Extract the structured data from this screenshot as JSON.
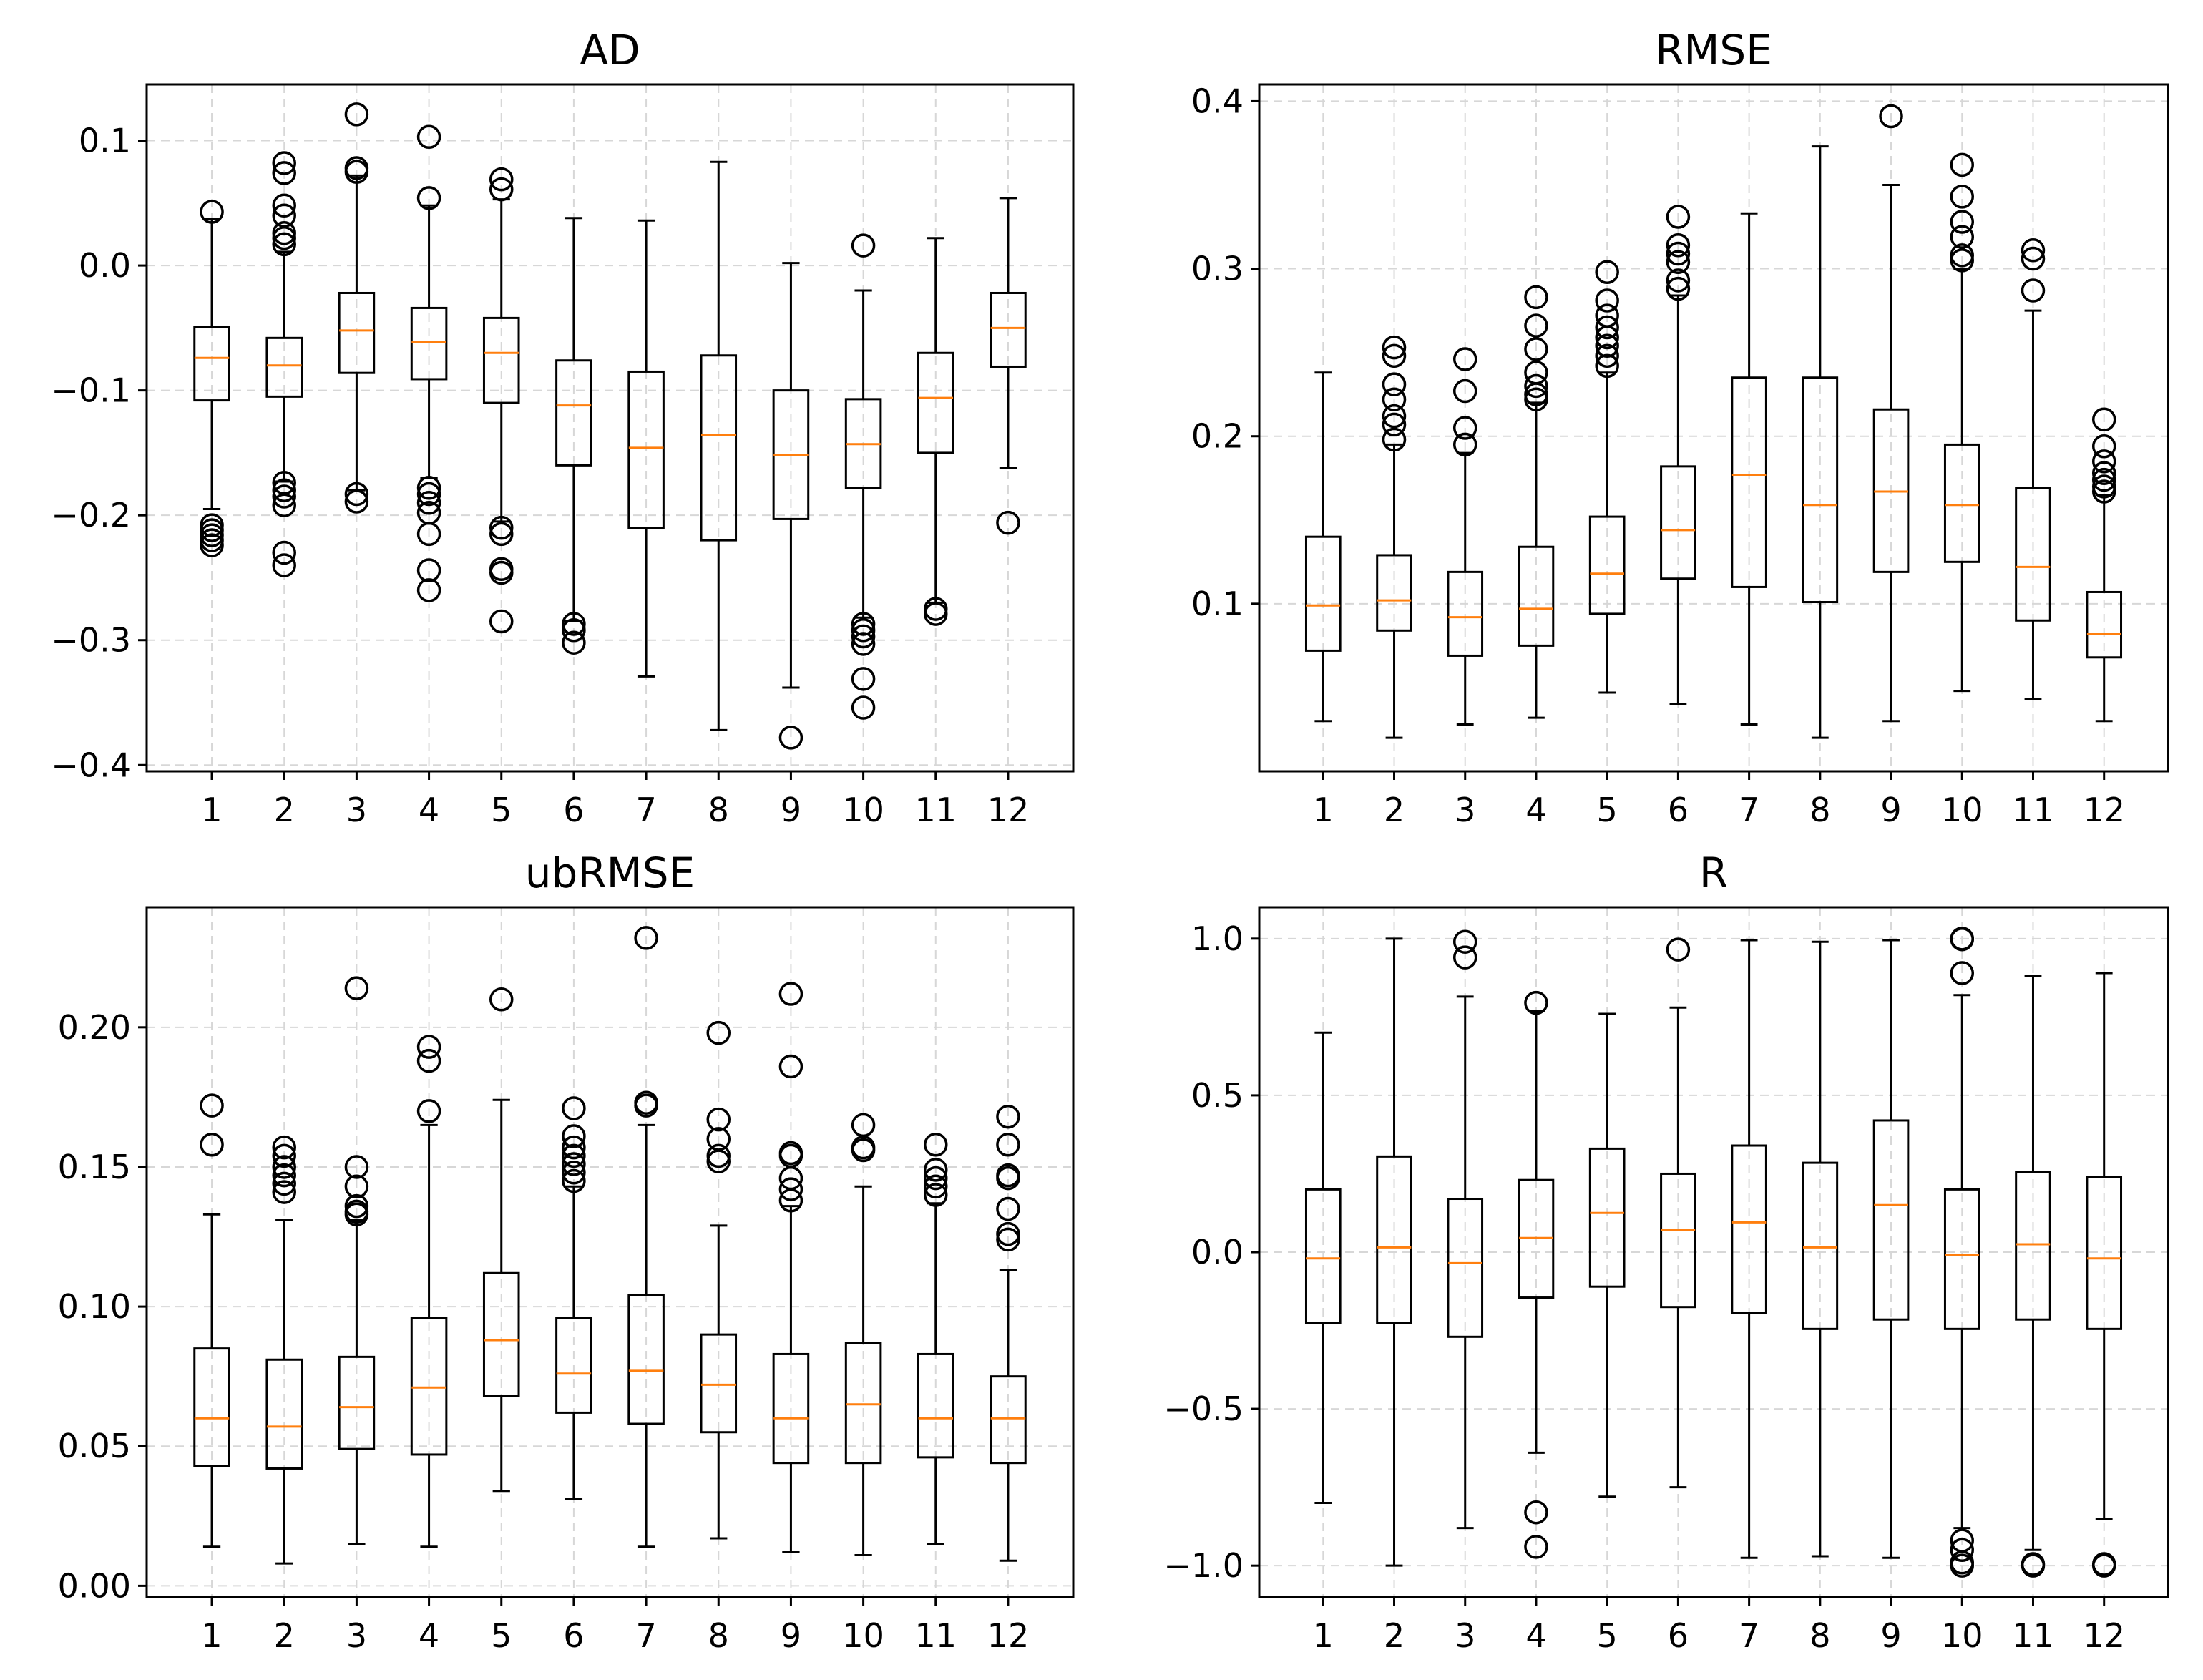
{
  "chart_data": [
    {
      "type": "boxplot",
      "title": "AD",
      "categories": [
        "1",
        "2",
        "3",
        "4",
        "5",
        "6",
        "7",
        "8",
        "9",
        "10",
        "11",
        "12"
      ],
      "ylim": [
        -0.405,
        0.145
      ],
      "yticks": [
        -0.4,
        -0.3,
        -0.2,
        -0.1,
        0.0,
        0.1
      ],
      "ytick_labels": [
        "−0.4",
        "−0.3",
        "−0.2",
        "−0.1",
        "0.0",
        "0.1"
      ],
      "boxes": [
        {
          "q1": -0.108,
          "median": -0.074,
          "q3": -0.049,
          "whislo": -0.195,
          "whishi": 0.037,
          "fliers": [
            0.043,
            -0.208,
            -0.212,
            -0.216,
            -0.22,
            -0.224
          ]
        },
        {
          "q1": -0.105,
          "median": -0.08,
          "q3": -0.058,
          "whislo": -0.173,
          "whishi": 0.011,
          "fliers": [
            0.082,
            0.074,
            0.048,
            0.04,
            0.026,
            0.022,
            0.017,
            -0.174,
            -0.18,
            -0.185,
            -0.192,
            -0.23,
            -0.24
          ]
        },
        {
          "q1": -0.086,
          "median": -0.052,
          "q3": -0.022,
          "whislo": -0.18,
          "whishi": 0.072,
          "fliers": [
            0.121,
            0.078,
            0.075,
            -0.183,
            -0.189
          ]
        },
        {
          "q1": -0.091,
          "median": -0.061,
          "q3": -0.034,
          "whislo": -0.17,
          "whishi": 0.048,
          "fliers": [
            0.103,
            0.054,
            -0.178,
            -0.183,
            -0.19,
            -0.198,
            -0.215,
            -0.244,
            -0.26
          ]
        },
        {
          "q1": -0.11,
          "median": -0.07,
          "q3": -0.042,
          "whislo": -0.205,
          "whishi": 0.053,
          "fliers": [
            0.069,
            0.061,
            -0.21,
            -0.215,
            -0.243,
            -0.246,
            -0.285
          ]
        },
        {
          "q1": -0.16,
          "median": -0.112,
          "q3": -0.076,
          "whislo": -0.285,
          "whishi": 0.038,
          "fliers": [
            -0.287,
            -0.292,
            -0.302
          ]
        },
        {
          "q1": -0.21,
          "median": -0.146,
          "q3": -0.085,
          "whislo": -0.329,
          "whishi": 0.036,
          "fliers": []
        },
        {
          "q1": -0.22,
          "median": -0.136,
          "q3": -0.072,
          "whislo": -0.372,
          "whishi": 0.083,
          "fliers": []
        },
        {
          "q1": -0.203,
          "median": -0.152,
          "q3": -0.1,
          "whislo": -0.338,
          "whishi": 0.002,
          "fliers": [
            -0.378
          ]
        },
        {
          "q1": -0.178,
          "median": -0.143,
          "q3": -0.107,
          "whislo": -0.282,
          "whishi": -0.02,
          "fliers": [
            0.016,
            -0.287,
            -0.292,
            -0.297,
            -0.303,
            -0.331,
            -0.354
          ]
        },
        {
          "q1": -0.15,
          "median": -0.106,
          "q3": -0.07,
          "whislo": -0.27,
          "whishi": 0.022,
          "fliers": [
            -0.275,
            -0.279
          ]
        },
        {
          "q1": -0.081,
          "median": -0.05,
          "q3": -0.022,
          "whislo": -0.162,
          "whishi": 0.054,
          "fliers": [
            -0.206
          ]
        }
      ]
    },
    {
      "type": "boxplot",
      "title": "RMSE",
      "categories": [
        "1",
        "2",
        "3",
        "4",
        "5",
        "6",
        "7",
        "8",
        "9",
        "10",
        "11",
        "12"
      ],
      "ylim": [
        0.0,
        0.41
      ],
      "yticks": [
        0.1,
        0.2,
        0.3,
        0.4
      ],
      "ytick_labels": [
        "0.1",
        "0.2",
        "0.3",
        "0.4"
      ],
      "boxes": [
        {
          "q1": 0.072,
          "median": 0.099,
          "q3": 0.14,
          "whislo": 0.03,
          "whishi": 0.238,
          "fliers": []
        },
        {
          "q1": 0.084,
          "median": 0.102,
          "q3": 0.129,
          "whislo": 0.02,
          "whishi": 0.195,
          "fliers": [
            0.253,
            0.248,
            0.231,
            0.222,
            0.212,
            0.207,
            0.198
          ]
        },
        {
          "q1": 0.069,
          "median": 0.092,
          "q3": 0.119,
          "whislo": 0.028,
          "whishi": 0.19,
          "fliers": [
            0.246,
            0.227,
            0.205,
            0.195
          ]
        },
        {
          "q1": 0.075,
          "median": 0.097,
          "q3": 0.134,
          "whislo": 0.032,
          "whishi": 0.22,
          "fliers": [
            0.283,
            0.266,
            0.252,
            0.238,
            0.23,
            0.225,
            0.222
          ]
        },
        {
          "q1": 0.094,
          "median": 0.118,
          "q3": 0.152,
          "whislo": 0.047,
          "whishi": 0.238,
          "fliers": [
            0.298,
            0.281,
            0.272,
            0.265,
            0.259,
            0.254,
            0.248,
            0.242
          ]
        },
        {
          "q1": 0.115,
          "median": 0.144,
          "q3": 0.182,
          "whislo": 0.04,
          "whishi": 0.284,
          "fliers": [
            0.331,
            0.314,
            0.309,
            0.304,
            0.293,
            0.288
          ]
        },
        {
          "q1": 0.11,
          "median": 0.177,
          "q3": 0.235,
          "whislo": 0.028,
          "whishi": 0.333,
          "fliers": []
        },
        {
          "q1": 0.101,
          "median": 0.159,
          "q3": 0.235,
          "whislo": 0.02,
          "whishi": 0.373,
          "fliers": []
        },
        {
          "q1": 0.119,
          "median": 0.167,
          "q3": 0.216,
          "whislo": 0.03,
          "whishi": 0.35,
          "fliers": [
            0.391
          ]
        },
        {
          "q1": 0.125,
          "median": 0.159,
          "q3": 0.195,
          "whislo": 0.048,
          "whishi": 0.3,
          "fliers": [
            0.362,
            0.343,
            0.328,
            0.319,
            0.308,
            0.305
          ]
        },
        {
          "q1": 0.09,
          "median": 0.122,
          "q3": 0.169,
          "whislo": 0.043,
          "whishi": 0.275,
          "fliers": [
            0.311,
            0.306,
            0.287
          ]
        },
        {
          "q1": 0.068,
          "median": 0.082,
          "q3": 0.107,
          "whislo": 0.03,
          "whishi": 0.165,
          "fliers": [
            0.21,
            0.194,
            0.185,
            0.178,
            0.174,
            0.17,
            0.167
          ]
        }
      ]
    },
    {
      "type": "boxplot",
      "title": "ubRMSE",
      "categories": [
        "1",
        "2",
        "3",
        "4",
        "5",
        "6",
        "7",
        "8",
        "9",
        "10",
        "11",
        "12"
      ],
      "ylim": [
        -0.004,
        0.243
      ],
      "yticks": [
        0.0,
        0.05,
        0.1,
        0.15,
        0.2
      ],
      "ytick_labels": [
        "0.00",
        "0.05",
        "0.10",
        "0.15",
        "0.20"
      ],
      "boxes": [
        {
          "q1": 0.043,
          "median": 0.06,
          "q3": 0.085,
          "whislo": 0.014,
          "whishi": 0.133,
          "fliers": [
            0.172,
            0.158
          ]
        },
        {
          "q1": 0.042,
          "median": 0.057,
          "q3": 0.081,
          "whislo": 0.008,
          "whishi": 0.131,
          "fliers": [
            0.157,
            0.154,
            0.15,
            0.147,
            0.144,
            0.141
          ]
        },
        {
          "q1": 0.049,
          "median": 0.064,
          "q3": 0.082,
          "whislo": 0.015,
          "whishi": 0.131,
          "fliers": [
            0.214,
            0.15,
            0.143,
            0.136,
            0.134,
            0.133
          ]
        },
        {
          "q1": 0.047,
          "median": 0.071,
          "q3": 0.096,
          "whislo": 0.014,
          "whishi": 0.165,
          "fliers": [
            0.193,
            0.188,
            0.17
          ]
        },
        {
          "q1": 0.068,
          "median": 0.088,
          "q3": 0.112,
          "whislo": 0.034,
          "whishi": 0.174,
          "fliers": [
            0.21
          ]
        },
        {
          "q1": 0.062,
          "median": 0.076,
          "q3": 0.096,
          "whislo": 0.031,
          "whishi": 0.143,
          "fliers": [
            0.171,
            0.161,
            0.157,
            0.154,
            0.151,
            0.148,
            0.145
          ]
        },
        {
          "q1": 0.058,
          "median": 0.077,
          "q3": 0.104,
          "whislo": 0.014,
          "whishi": 0.165,
          "fliers": [
            0.232,
            0.173,
            0.172
          ]
        },
        {
          "q1": 0.055,
          "median": 0.072,
          "q3": 0.09,
          "whislo": 0.017,
          "whishi": 0.129,
          "fliers": [
            0.198,
            0.167,
            0.16,
            0.154,
            0.152
          ]
        },
        {
          "q1": 0.044,
          "median": 0.06,
          "q3": 0.083,
          "whislo": 0.012,
          "whishi": 0.136,
          "fliers": [
            0.212,
            0.186,
            0.155,
            0.154,
            0.146,
            0.142,
            0.138
          ]
        },
        {
          "q1": 0.044,
          "median": 0.065,
          "q3": 0.087,
          "whislo": 0.011,
          "whishi": 0.143,
          "fliers": [
            0.165,
            0.157,
            0.156
          ]
        },
        {
          "q1": 0.046,
          "median": 0.06,
          "q3": 0.083,
          "whislo": 0.015,
          "whishi": 0.137,
          "fliers": [
            0.158,
            0.149,
            0.146,
            0.143,
            0.14
          ]
        },
        {
          "q1": 0.044,
          "median": 0.06,
          "q3": 0.075,
          "whislo": 0.009,
          "whishi": 0.113,
          "fliers": [
            0.168,
            0.158,
            0.147,
            0.146,
            0.135,
            0.126,
            0.124
          ]
        }
      ]
    },
    {
      "type": "boxplot",
      "title": "R",
      "categories": [
        "1",
        "2",
        "3",
        "4",
        "5",
        "6",
        "7",
        "8",
        "9",
        "10",
        "11",
        "12"
      ],
      "ylim": [
        -1.1,
        1.1
      ],
      "yticks": [
        -1.0,
        -0.5,
        0.0,
        0.5,
        1.0
      ],
      "ytick_labels": [
        "−1.0",
        "−0.5",
        "0.0",
        "0.5",
        "1.0"
      ],
      "boxes": [
        {
          "q1": -0.225,
          "median": -0.02,
          "q3": 0.2,
          "whislo": -0.8,
          "whishi": 0.7,
          "fliers": []
        },
        {
          "q1": -0.225,
          "median": 0.015,
          "q3": 0.305,
          "whislo": -1.0,
          "whishi": 1.0,
          "fliers": []
        },
        {
          "q1": -0.27,
          "median": -0.035,
          "q3": 0.17,
          "whislo": -0.88,
          "whishi": 0.815,
          "fliers": [
            0.99,
            0.94
          ]
        },
        {
          "q1": -0.145,
          "median": 0.045,
          "q3": 0.23,
          "whislo": -0.64,
          "whishi": 0.77,
          "fliers": [
            0.795,
            -0.83,
            -0.94
          ]
        },
        {
          "q1": -0.11,
          "median": 0.125,
          "q3": 0.33,
          "whislo": -0.78,
          "whishi": 0.76,
          "fliers": []
        },
        {
          "q1": -0.175,
          "median": 0.07,
          "q3": 0.25,
          "whislo": -0.75,
          "whishi": 0.78,
          "fliers": [
            0.965
          ]
        },
        {
          "q1": -0.195,
          "median": 0.095,
          "q3": 0.34,
          "whislo": -0.975,
          "whishi": 0.995,
          "fliers": []
        },
        {
          "q1": -0.245,
          "median": 0.015,
          "q3": 0.285,
          "whislo": -0.97,
          "whishi": 0.99,
          "fliers": []
        },
        {
          "q1": -0.215,
          "median": 0.15,
          "q3": 0.42,
          "whislo": -0.975,
          "whishi": 0.995,
          "fliers": []
        },
        {
          "q1": -0.245,
          "median": -0.01,
          "q3": 0.2,
          "whislo": -0.88,
          "whishi": 0.82,
          "fliers": [
            1.0,
            0.998,
            0.89,
            -0.92,
            -0.95,
            -0.99,
            -1.0
          ]
        },
        {
          "q1": -0.215,
          "median": 0.025,
          "q3": 0.255,
          "whislo": -0.95,
          "whishi": 0.88,
          "fliers": [
            -0.995,
            -1.0
          ]
        },
        {
          "q1": -0.245,
          "median": -0.02,
          "q3": 0.24,
          "whislo": -0.85,
          "whishi": 0.89,
          "fliers": [
            -0.995,
            -1.0
          ]
        }
      ]
    }
  ]
}
